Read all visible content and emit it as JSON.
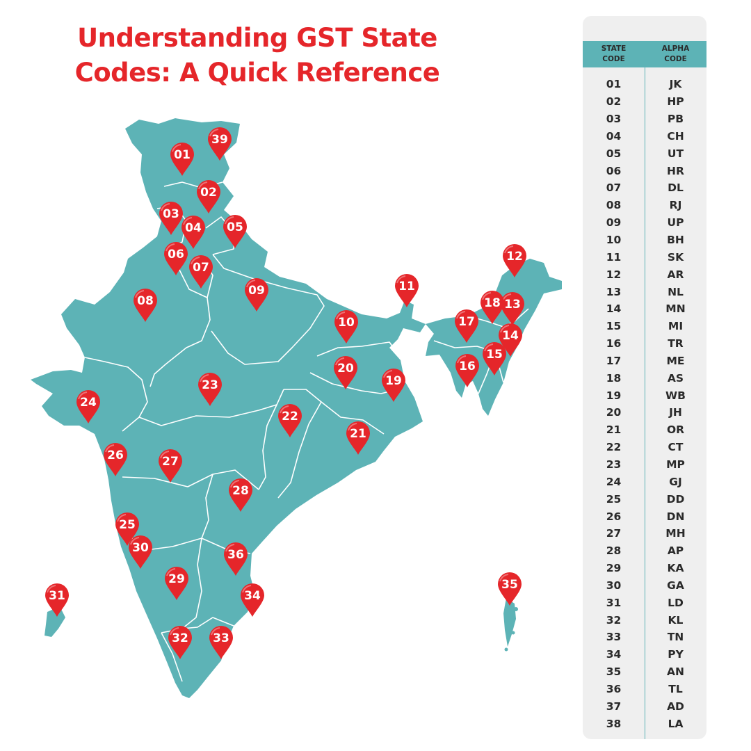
{
  "title": {
    "line1": "Understanding GST State",
    "line2": "Codes: A Quick Reference"
  },
  "colors": {
    "title": "#e5262a",
    "map_fill": "#5db3b6",
    "border_lines": "#ffffff",
    "pin": "#e5262a",
    "pin_text": "#ffffff",
    "table_panel": "#efefef",
    "table_header": "#5db3b6"
  },
  "map": {
    "icon": "india-map",
    "pins": [
      "01",
      "39",
      "02",
      "03",
      "04",
      "05",
      "06",
      "07",
      "08",
      "09",
      "10",
      "11",
      "12",
      "13",
      "14",
      "15",
      "16",
      "17",
      "18",
      "19",
      "20",
      "21",
      "22",
      "23",
      "24",
      "25",
      "26",
      "27",
      "28",
      "29",
      "30",
      "31",
      "32",
      "33",
      "34",
      "35",
      "36"
    ]
  },
  "table": {
    "header": {
      "state_code": "STATE\nCODE",
      "alpha_code": "ALPHA\nCODE"
    },
    "rows": [
      {
        "state_code": "01",
        "alpha_code": "JK"
      },
      {
        "state_code": "02",
        "alpha_code": "HP"
      },
      {
        "state_code": "03",
        "alpha_code": "PB"
      },
      {
        "state_code": "04",
        "alpha_code": "CH"
      },
      {
        "state_code": "05",
        "alpha_code": "UT"
      },
      {
        "state_code": "06",
        "alpha_code": "HR"
      },
      {
        "state_code": "07",
        "alpha_code": "DL"
      },
      {
        "state_code": "08",
        "alpha_code": "RJ"
      },
      {
        "state_code": "09",
        "alpha_code": "UP"
      },
      {
        "state_code": "10",
        "alpha_code": "BH"
      },
      {
        "state_code": "11",
        "alpha_code": "SK"
      },
      {
        "state_code": "12",
        "alpha_code": "AR"
      },
      {
        "state_code": "13",
        "alpha_code": "NL"
      },
      {
        "state_code": "14",
        "alpha_code": "MN"
      },
      {
        "state_code": "15",
        "alpha_code": "MI"
      },
      {
        "state_code": "16",
        "alpha_code": "TR"
      },
      {
        "state_code": "17",
        "alpha_code": "ME"
      },
      {
        "state_code": "18",
        "alpha_code": "AS"
      },
      {
        "state_code": "19",
        "alpha_code": "WB"
      },
      {
        "state_code": "20",
        "alpha_code": "JH"
      },
      {
        "state_code": "21",
        "alpha_code": "OR"
      },
      {
        "state_code": "22",
        "alpha_code": "CT"
      },
      {
        "state_code": "23",
        "alpha_code": "MP"
      },
      {
        "state_code": "24",
        "alpha_code": "GJ"
      },
      {
        "state_code": "25",
        "alpha_code": "DD"
      },
      {
        "state_code": "26",
        "alpha_code": "DN"
      },
      {
        "state_code": "27",
        "alpha_code": "MH"
      },
      {
        "state_code": "28",
        "alpha_code": "AP"
      },
      {
        "state_code": "29",
        "alpha_code": "KA"
      },
      {
        "state_code": "30",
        "alpha_code": "GA"
      },
      {
        "state_code": "31",
        "alpha_code": "LD"
      },
      {
        "state_code": "32",
        "alpha_code": "KL"
      },
      {
        "state_code": "33",
        "alpha_code": "TN"
      },
      {
        "state_code": "34",
        "alpha_code": "PY"
      },
      {
        "state_code": "35",
        "alpha_code": "AN"
      },
      {
        "state_code": "36",
        "alpha_code": "TL"
      },
      {
        "state_code": "37",
        "alpha_code": "AD"
      },
      {
        "state_code": "38",
        "alpha_code": "LA"
      }
    ]
  }
}
